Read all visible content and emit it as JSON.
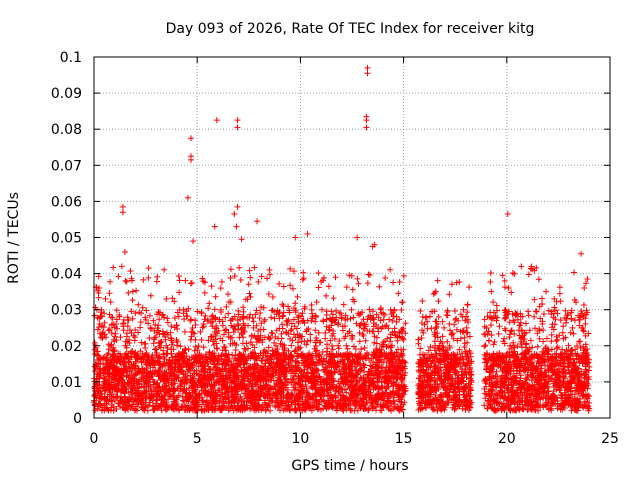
{
  "chart_data": {
    "type": "scatter",
    "title": "Day 093 of 2026, Rate Of TEC Index for receiver kitg",
    "xlabel": "GPS time / hours",
    "ylabel": "ROTI / TECUs",
    "xlim": [
      0,
      25
    ],
    "ylim": [
      0,
      0.1
    ],
    "x_ticks": [
      0,
      5,
      10,
      15,
      20,
      25
    ],
    "y_ticks": [
      0,
      0.01,
      0.02,
      0.03,
      0.04,
      0.05,
      0.06,
      0.07,
      0.08,
      0.09,
      0.1
    ],
    "x_tick_labels": [
      "0",
      "5",
      "10",
      "15",
      "20",
      "25"
    ],
    "y_tick_labels": [
      "0",
      "0.01",
      "0.02",
      "0.03",
      "0.04",
      "0.05",
      "0.06",
      "0.07",
      "0.08",
      "0.09",
      "0.1"
    ],
    "grid": true,
    "marker": "+",
    "color": "#ff0000",
    "dense_band": {
      "segments": [
        [
          0,
          15.1
        ],
        [
          15.7,
          18.3
        ],
        [
          18.9,
          24.0
        ]
      ],
      "baseline_min": 0.002,
      "baseline_max": 0.018,
      "typical_max": 0.03
    },
    "notable_points": [
      {
        "x": 13.25,
        "y": 0.097
      },
      {
        "x": 13.25,
        "y": 0.0955
      },
      {
        "x": 13.2,
        "y": 0.0835
      },
      {
        "x": 13.2,
        "y": 0.0825
      },
      {
        "x": 13.2,
        "y": 0.0805
      },
      {
        "x": 5.95,
        "y": 0.0825
      },
      {
        "x": 6.95,
        "y": 0.0825
      },
      {
        "x": 6.95,
        "y": 0.0805
      },
      {
        "x": 4.7,
        "y": 0.0775
      },
      {
        "x": 4.7,
        "y": 0.0725
      },
      {
        "x": 4.7,
        "y": 0.0715
      },
      {
        "x": 4.55,
        "y": 0.061
      },
      {
        "x": 1.4,
        "y": 0.0585
      },
      {
        "x": 1.4,
        "y": 0.057
      },
      {
        "x": 6.95,
        "y": 0.0585
      },
      {
        "x": 6.8,
        "y": 0.0565
      },
      {
        "x": 7.9,
        "y": 0.0545
      },
      {
        "x": 20.05,
        "y": 0.0565
      },
      {
        "x": 6.9,
        "y": 0.053
      },
      {
        "x": 5.85,
        "y": 0.053
      },
      {
        "x": 23.6,
        "y": 0.0455
      },
      {
        "x": 1.5,
        "y": 0.046
      },
      {
        "x": 12.75,
        "y": 0.05
      },
      {
        "x": 10.35,
        "y": 0.051
      },
      {
        "x": 9.75,
        "y": 0.05
      },
      {
        "x": 13.5,
        "y": 0.0475
      },
      {
        "x": 13.6,
        "y": 0.048
      },
      {
        "x": 4.8,
        "y": 0.049
      },
      {
        "x": 7.15,
        "y": 0.0495
      },
      {
        "x": 1.35,
        "y": 0.042
      },
      {
        "x": 19.8,
        "y": 0.0395
      },
      {
        "x": 19.9,
        "y": 0.038
      },
      {
        "x": 11.7,
        "y": 0.039
      },
      {
        "x": 8.5,
        "y": 0.041
      },
      {
        "x": 16.7,
        "y": 0.028
      },
      {
        "x": 17.9,
        "y": 0.03
      },
      {
        "x": 22.3,
        "y": 0.033
      },
      {
        "x": 21.9,
        "y": 0.035
      },
      {
        "x": 23.75,
        "y": 0.036
      },
      {
        "x": 0.25,
        "y": 0.036
      }
    ]
  }
}
